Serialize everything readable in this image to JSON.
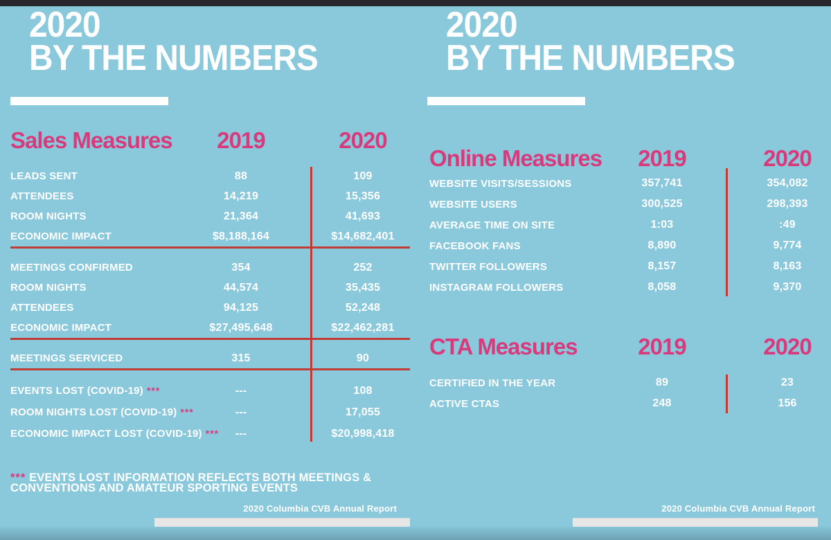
{
  "colors": {
    "background_blue": "#8ac9dc",
    "accent_pink": "#d93a7c",
    "divider_red": "#c23a31",
    "top_bar_dark": "#28282c",
    "footer_bar_gray": "#e7e7e7"
  },
  "left_slide": {
    "title_line1": "2020",
    "title_line2": "BY THE NUMBERS",
    "table": {
      "heading": "Sales Measures",
      "col1": "2019",
      "col2": "2020",
      "groups": [
        {
          "rows": [
            {
              "label": "LEADS SENT",
              "v1": "88",
              "v2": "109"
            },
            {
              "label": "ATTENDEES",
              "v1": "14,219",
              "v2": "15,356"
            },
            {
              "label": "ROOM NIGHTS",
              "v1": "21,364",
              "v2": "41,693"
            },
            {
              "label": "ECONOMIC IMPACT",
              "v1": "$8,188,164",
              "v2": "$14,682,401"
            }
          ]
        },
        {
          "rows": [
            {
              "label": "MEETINGS CONFIRMED",
              "v1": "354",
              "v2": "252"
            },
            {
              "label": "ROOM NIGHTS",
              "v1": "44,574",
              "v2": "35,435"
            },
            {
              "label": "ATTENDEES",
              "v1": "94,125",
              "v2": "52,248"
            },
            {
              "label": "ECONOMIC IMPACT",
              "v1": "$27,495,648",
              "v2": "$22,462,281"
            }
          ]
        },
        {
          "rows": [
            {
              "label": "MEETINGS SERVICED",
              "v1": "315",
              "v2": "90"
            }
          ]
        },
        {
          "rows": [
            {
              "label": "EVENTS LOST (COVID-19)",
              "marker": "***",
              "v1": "---",
              "v2": "108"
            },
            {
              "label": "ROOM NIGHTS LOST (COVID-19)",
              "marker": "***",
              "v1": "---",
              "v2": "17,055"
            },
            {
              "label": "ECONOMIC IMPACT LOST (COVID-19)",
              "marker": "***",
              "v1": "---",
              "v2": "$20,998,418"
            }
          ]
        }
      ]
    },
    "footnote": {
      "marker": "***",
      "line1": "EVENTS LOST INFORMATION REFLECTS BOTH MEETINGS &",
      "line2": "CONVENTIONS AND AMATEUR SPORTING EVENTS"
    },
    "footer": "2020 Columbia CVB Annual Report"
  },
  "right_slide": {
    "title_line1": "2020",
    "title_line2": "BY THE NUMBERS",
    "online": {
      "heading": "Online Measures",
      "col1": "2019",
      "col2": "2020",
      "rows": [
        {
          "label": "WEBSITE VISITS/SESSIONS",
          "v1": "357,741",
          "v2": "354,082"
        },
        {
          "label": "WEBSITE USERS",
          "v1": "300,525",
          "v2": "298,393"
        },
        {
          "label": "AVERAGE TIME ON SITE",
          "v1": "1:03",
          "v2": ":49"
        },
        {
          "label": "FACEBOOK FANS",
          "v1": "8,890",
          "v2": "9,774"
        },
        {
          "label": "TWITTER FOLLOWERS",
          "v1": "8,157",
          "v2": "8,163"
        },
        {
          "label": "INSTAGRAM FOLLOWERS",
          "v1": "8,058",
          "v2": "9,370"
        }
      ]
    },
    "cta": {
      "heading": "CTA Measures",
      "col1": "2019",
      "col2": "2020",
      "rows": [
        {
          "label": "CERTIFIED IN THE YEAR",
          "v1": "89",
          "v2": "23"
        },
        {
          "label": "ACTIVE CTAS",
          "v1": "248",
          "v2": "156"
        }
      ]
    },
    "footer": "2020 Columbia CVB Annual Report"
  }
}
